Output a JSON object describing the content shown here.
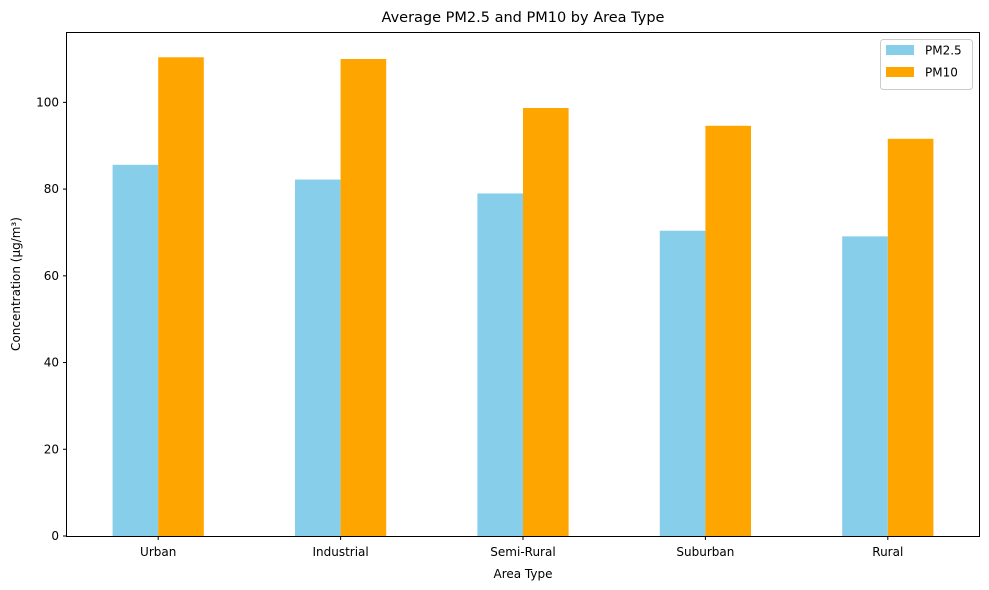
{
  "chart_data": {
    "type": "bar",
    "title": "Average PM2.5 and PM10 by Area Type",
    "xlabel": "Area Type",
    "ylabel": "Concentration (µg/m³)",
    "categories": [
      "Urban",
      "Industrial",
      "Semi-Rural",
      "Suburban",
      "Rural"
    ],
    "series": [
      {
        "name": "PM2.5",
        "color": "#87ceeb",
        "values": [
          85.6,
          82.2,
          79.0,
          70.4,
          69.1
        ]
      },
      {
        "name": "PM10",
        "color": "#ffa500",
        "values": [
          110.4,
          110.0,
          98.7,
          94.6,
          91.6
        ]
      }
    ],
    "ylim": [
      0,
      116
    ],
    "yticks": [
      0,
      20,
      40,
      60,
      80,
      100
    ],
    "legend_position": "top-right",
    "grid": false
  }
}
